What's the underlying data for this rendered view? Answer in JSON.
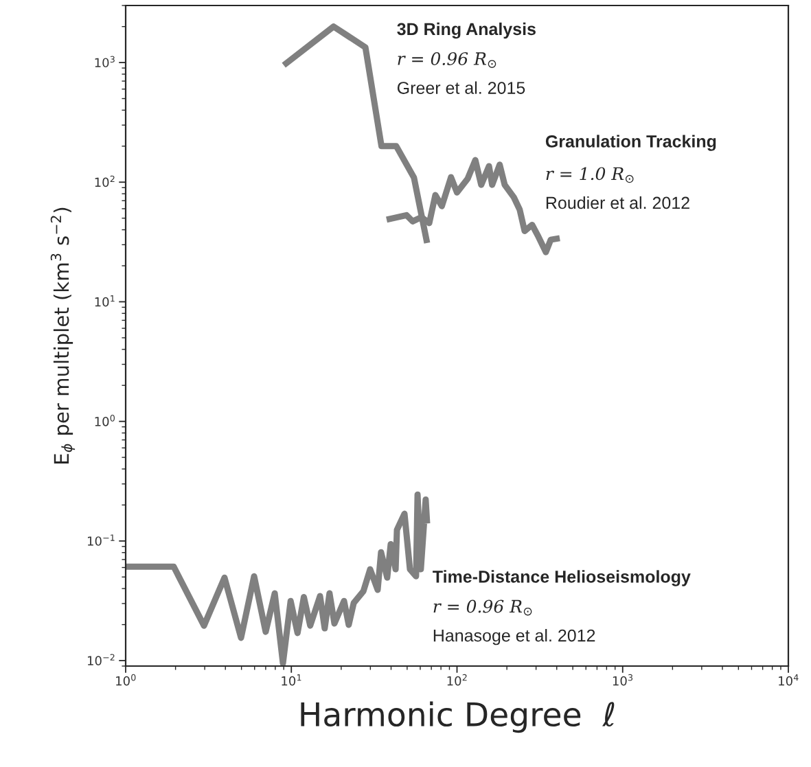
{
  "chart_data": {
    "type": "line",
    "log": "xy",
    "line_style": "solid",
    "xlabel": "Harmonic Degree  ℓ",
    "ylabel": "E$_{ϕ}$ per multiplet (km$^{3}$ s$^{−2}$)",
    "xlim": [
      1,
      10000
    ],
    "ylim": [
      0.009,
      3000
    ],
    "xticks": [
      {
        "value": 1,
        "label": "10$^{0}$"
      },
      {
        "value": 10,
        "label": "10$^{1}$"
      },
      {
        "value": 100,
        "label": "10$^{2}$"
      },
      {
        "value": 1000,
        "label": "10$^{3}$"
      },
      {
        "value": 10000,
        "label": "10$^{4}$"
      }
    ],
    "yticks": [
      {
        "value": 0.01,
        "label": "10$^{−2}$"
      },
      {
        "value": 0.1,
        "label": "10$^{−1}$"
      },
      {
        "value": 1,
        "label": "10$^{0}$"
      },
      {
        "value": 10,
        "label": "10$^{1}$"
      },
      {
        "value": 100,
        "label": "10$^{2}$"
      },
      {
        "value": 1000,
        "label": "10$^{3}$"
      }
    ],
    "annotations": [
      "3D Ring Analysis",
      "r = 0.96 R$_{⊙}$",
      "Greer et al. 2015",
      "Granulation Tracking",
      "r = 1.0 R$_{⊙}$",
      "Roudier et al. 2012",
      "Time-Distance Helioseismology",
      "r = 0.96 R$_{⊙}$",
      "Hanasoge et al. 2012"
    ],
    "series": [
      {
        "color": "#808080",
        "x": [
          9,
          18,
          28,
          35,
          43,
          55,
          66
        ],
        "values": [
          950,
          2000,
          1340,
          200,
          200,
          109,
          31
        ]
      },
      {
        "color": "#808080",
        "x": [
          37.6,
          49.6,
          54,
          61,
          68,
          74,
          81,
          92,
          100,
          116,
          129,
          140,
          156,
          163,
          181,
          194,
          220,
          239,
          256,
          284,
          310,
          344,
          368,
          417
        ],
        "values": [
          48.6,
          53,
          47,
          51,
          45.5,
          78,
          63,
          110,
          82,
          107,
          153,
          95,
          136,
          95,
          140,
          95,
          75,
          59,
          39,
          44,
          35,
          26,
          33,
          34
        ]
      },
      {
        "color": "#808080",
        "x": [
          1,
          1.95,
          2.97,
          3.95,
          4.97,
          5.96,
          7.0,
          7.94,
          8.9,
          9.9,
          10.9,
          11.9,
          13.0,
          14.9,
          15.9,
          17,
          18.2,
          20.8,
          22.2,
          23.8,
          27.2,
          29.9,
          33.2,
          34.8,
          37.9,
          39.8,
          42.6,
          43.4,
          48.2,
          52,
          56.6,
          57.8,
          60.5,
          64.7,
          66
        ],
        "values": [
          0.061,
          0.061,
          0.0196,
          0.0494,
          0.0155,
          0.0507,
          0.0174,
          0.0365,
          0.0095,
          0.0315,
          0.017,
          0.034,
          0.0196,
          0.0346,
          0.0186,
          0.0365,
          0.0204,
          0.0315,
          0.0199,
          0.0303,
          0.0379,
          0.058,
          0.039,
          0.0805,
          0.0494,
          0.094,
          0.058,
          0.124,
          0.169,
          0.058,
          0.0507,
          0.244,
          0.058,
          0.222,
          0.14
        ]
      }
    ]
  }
}
